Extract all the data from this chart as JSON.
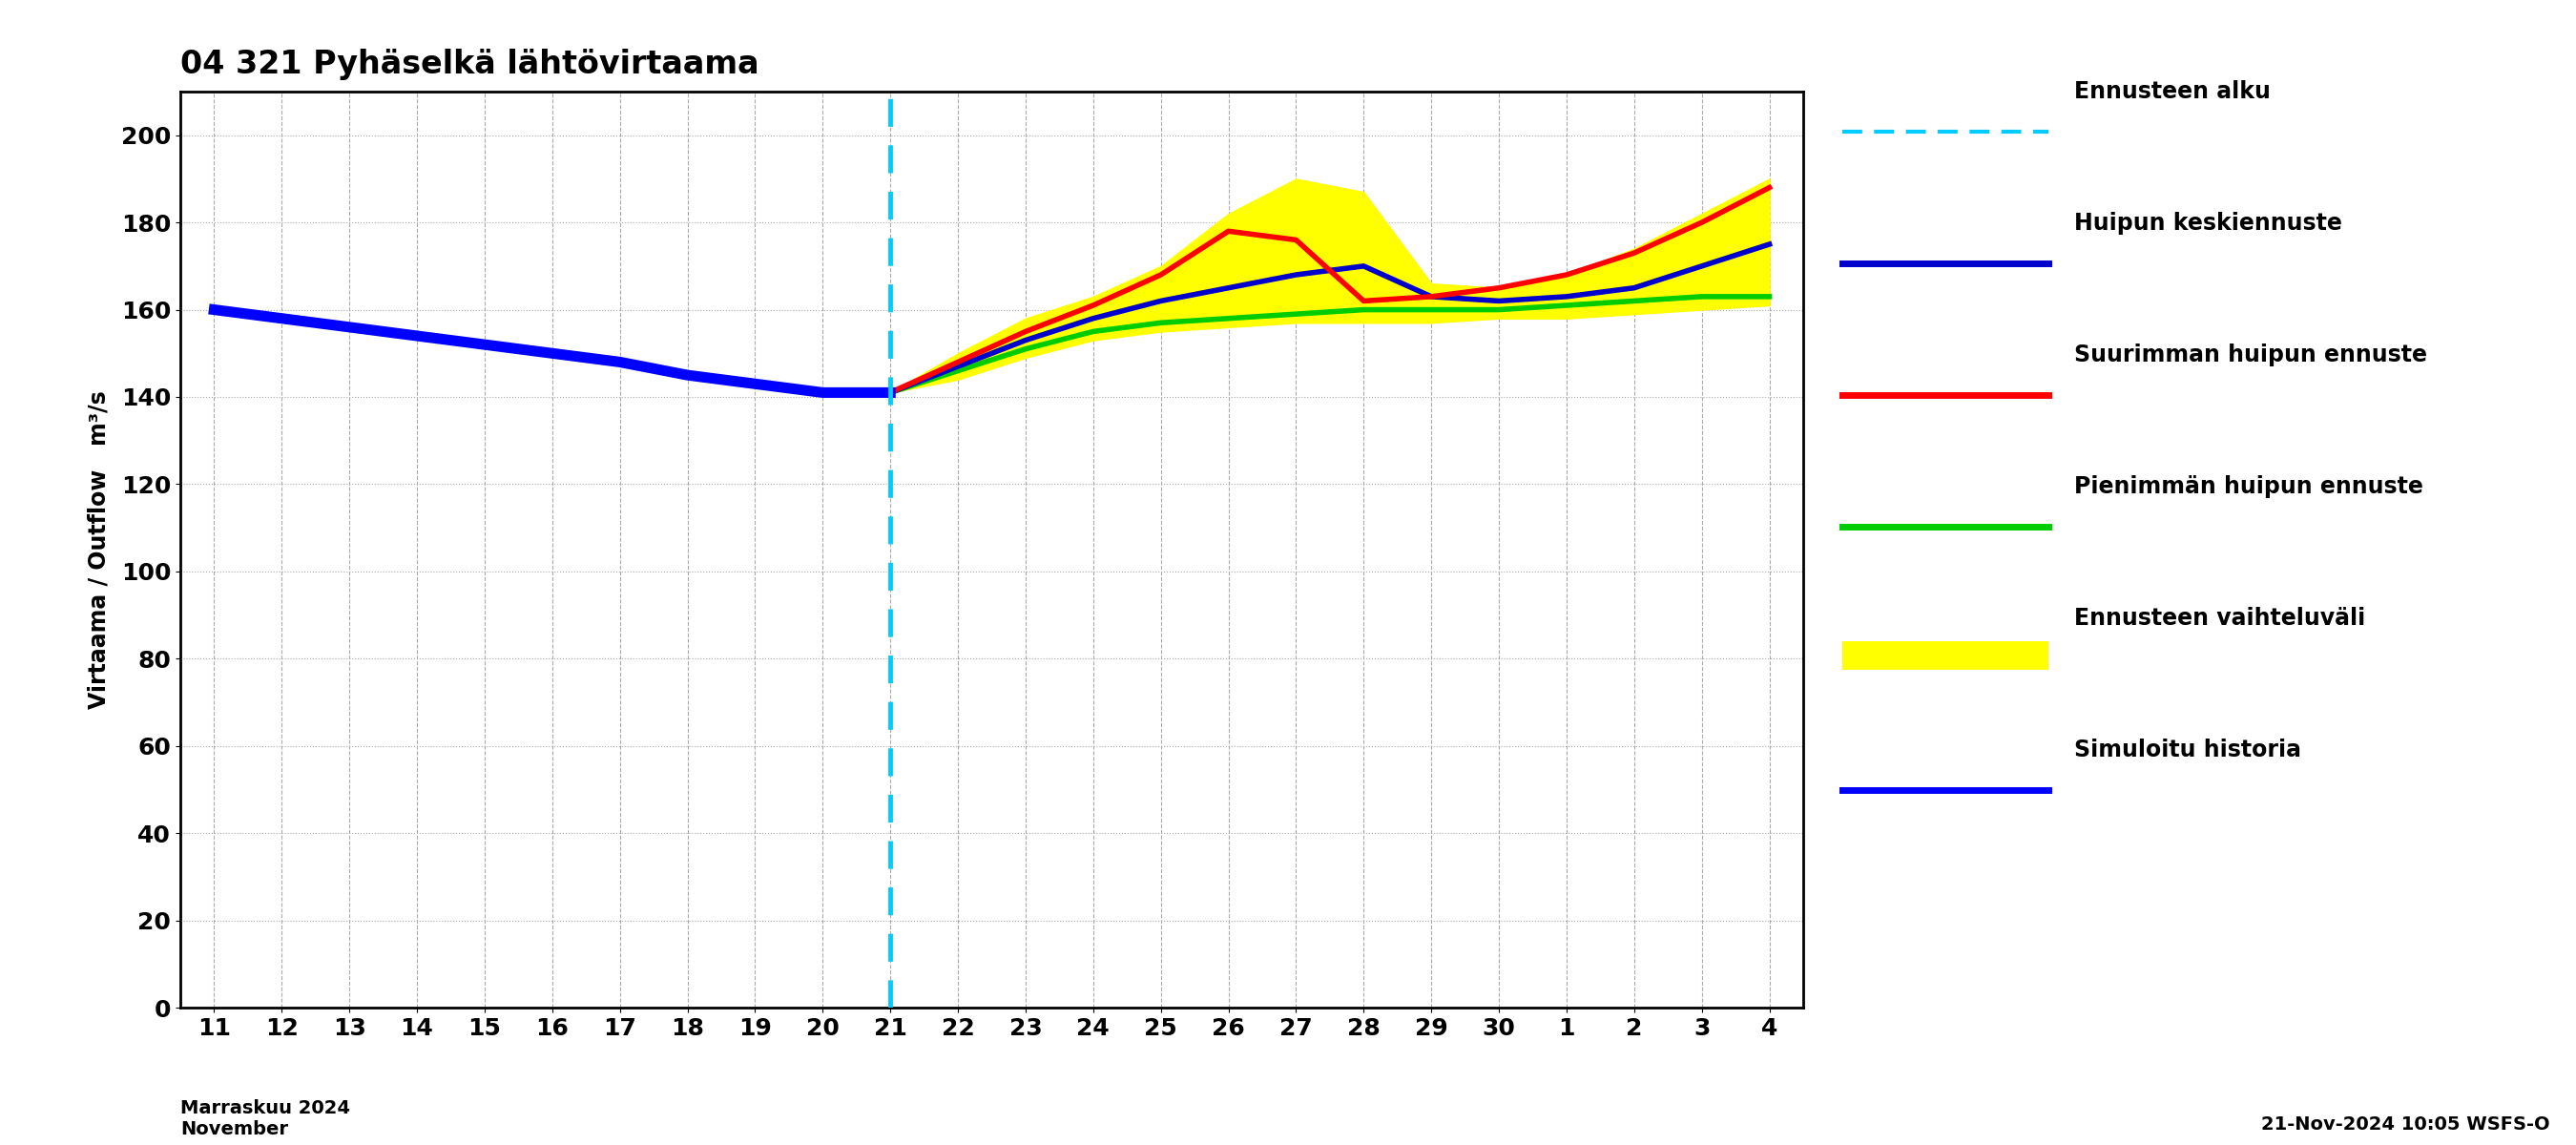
{
  "title": "04 321 Pyhäselkä lähtövirtaama",
  "ylabel": "Virtaama / Outflow   m³/s",
  "xlabel_main": "Marraskuu 2024\nNovember",
  "footnote": "21-Nov-2024 10:05 WSFS-O",
  "ylim": [
    0,
    210
  ],
  "yticks": [
    0,
    20,
    40,
    60,
    80,
    100,
    120,
    140,
    160,
    180,
    200
  ],
  "vline_x": 10,
  "history_x": [
    0,
    1,
    2,
    3,
    4,
    5,
    6,
    7,
    8,
    9,
    10
  ],
  "history_y": [
    160,
    158,
    156,
    154,
    152,
    150,
    148,
    145,
    143,
    141,
    141
  ],
  "forecast_x": [
    10,
    11,
    12,
    13,
    14,
    15,
    16,
    17,
    18,
    19,
    20,
    21,
    22,
    23
  ],
  "mean_y": [
    141,
    147,
    153,
    158,
    162,
    165,
    168,
    170,
    163,
    162,
    163,
    165,
    170,
    175
  ],
  "max_y": [
    141,
    148,
    155,
    161,
    168,
    178,
    176,
    162,
    163,
    165,
    168,
    173,
    180,
    188
  ],
  "min_y": [
    141,
    146,
    151,
    155,
    157,
    158,
    159,
    160,
    160,
    160,
    161,
    162,
    163,
    163
  ],
  "upper_y": [
    141,
    150,
    158,
    163,
    170,
    182,
    190,
    187,
    166,
    165,
    168,
    174,
    182,
    190
  ],
  "lower_y": [
    141,
    144,
    149,
    153,
    155,
    156,
    157,
    157,
    157,
    158,
    158,
    159,
    160,
    161
  ],
  "xtick_labels": [
    "11",
    "12",
    "13",
    "14",
    "15",
    "16",
    "17",
    "18",
    "19",
    "20",
    "21",
    "22",
    "23",
    "24",
    "25",
    "26",
    "27",
    "28",
    "29",
    "30",
    "1",
    "2",
    "3",
    "4"
  ],
  "colors": {
    "history": "#0000ff",
    "mean": "#0000cc",
    "max": "#ff0000",
    "min": "#00cc00",
    "fill": "#ffff00",
    "vline": "#00ccff",
    "background": "#ffffff",
    "grid_major": "#888888",
    "grid_minor": "#cccccc"
  },
  "legend_labels": [
    "Ennusteen alku",
    "Huipun keskiennuste",
    "Suurimman huipun ennuste",
    "Pienimmän huipun ennuste",
    "Ennusteen vaihteluväli",
    "Simuloitu historia"
  ]
}
